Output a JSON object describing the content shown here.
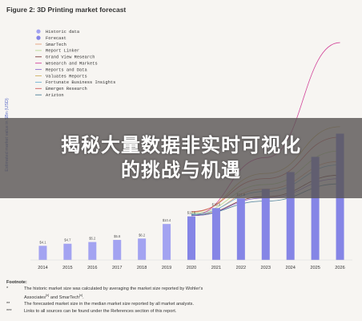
{
  "figure_title": "Figure 2: 3D Printing market forecast",
  "colors": {
    "historic_bar": "#a3a3f1",
    "forecast_bar": "#8585e6",
    "SmarTech": "#e3a07a",
    "Report Linker": "#b9d98f",
    "Grand View Research": "#7a3b3b",
    "Wesearch and Markets": "#d2459a",
    "Reports and Data": "#8f6ed1",
    "Valuates Reports": "#d0b264",
    "Fortunate Business Insights": "#6fb0d2",
    "Emergen Research": "#cf5a5a",
    "Arizton": "#4a7f98"
  },
  "chart_data": {
    "type": "bar",
    "title": "Figure 2: 3D Printing market forecast",
    "xlabel": "",
    "ylabel": "Estimated market value in $Bn (USD)",
    "categories": [
      "2014",
      "2015",
      "2016",
      "2017",
      "2018",
      "2019",
      "2020",
      "2021",
      "2022",
      "2023",
      "2024",
      "2025",
      "2026"
    ],
    "ylim": [
      0,
      70
    ],
    "grid": false,
    "legend_position": "top-left",
    "series": [
      {
        "name": "Historic data",
        "type": "bar",
        "values": [
          4.1,
          4.7,
          5.2,
          5.8,
          6.2,
          10.4,
          null,
          null,
          null,
          null,
          null,
          null,
          null
        ],
        "labels": [
          "$4.1",
          "$4.7",
          "$5.2",
          "$5.8",
          "$6.2",
          "$10.4",
          "",
          "",
          "",
          "",
          "",
          "",
          ""
        ]
      },
      {
        "name": "Forecast",
        "type": "bar",
        "values": [
          null,
          null,
          null,
          null,
          null,
          null,
          12.6,
          15.0,
          17.8,
          20.5,
          25.4,
          29.8,
          36.5
        ],
        "labels": [
          "",
          "",
          "",
          "",
          "",
          "",
          "$12.6",
          "$15.0",
          "$17.8",
          "",
          "",
          "",
          ""
        ]
      },
      {
        "name": "SmarTech",
        "type": "line",
        "x": [
          "2020",
          "2023",
          "2026"
        ],
        "values": [
          12.9,
          20.5,
          28.5
        ]
      },
      {
        "name": "Report Linker",
        "type": "line",
        "x": [
          "2020",
          "2023",
          "2026"
        ],
        "values": [
          13.4,
          21.8,
          31.5
        ]
      },
      {
        "name": "Grand View Research",
        "type": "line",
        "x": [
          "2020",
          "2023",
          "2026"
        ],
        "values": [
          12.8,
          18.3,
          24.5
        ]
      },
      {
        "name": "Wesearch and Markets",
        "type": "line",
        "x": [
          "2020",
          "2023",
          "2026"
        ],
        "values": [
          12.9,
          29.6,
          62.8
        ]
      },
      {
        "name": "Reports and Data",
        "type": "line",
        "x": [
          "2020",
          "2023",
          "2026"
        ],
        "values": [
          12.8,
          17.9,
          23.5
        ]
      },
      {
        "name": "Valuates Reports",
        "type": "line",
        "x": [
          "2020",
          "2023",
          "2026"
        ],
        "values": [
          13.8,
          25.0,
          38.5
        ]
      },
      {
        "name": "Fortunate Business Insights",
        "type": "line",
        "x": [
          "2020",
          "2023",
          "2026"
        ],
        "values": [
          13.2,
          19.8,
          27.5
        ]
      },
      {
        "name": "Emergen Research",
        "type": "line",
        "x": [
          "2020",
          "2023",
          "2026"
        ],
        "values": [
          14.0,
          23.5,
          35.5
        ]
      },
      {
        "name": "Arizton",
        "type": "line",
        "x": [
          "2020",
          "2023",
          "2026"
        ],
        "values": [
          13.0,
          17.0,
          22.0
        ]
      }
    ],
    "legend": [
      "Historic data",
      "Forecast",
      "SmarTech",
      "Report Linker",
      "Grand View Research",
      "Wesearch and Markets",
      "Reports and Data",
      "Valuates Reports",
      "Fortunate Business Insights",
      "Emergen Research",
      "Arizton"
    ]
  },
  "footnotes": {
    "heading": "Footnote:",
    "items": [
      {
        "mark": "*",
        "text": "The historic market size was calculated by averaging the market size reported by Wohler's",
        "cont": "Associates",
        "sup1": "[x]",
        "mid": " and SmarTech",
        "sup2": "[x]",
        "end": "."
      },
      {
        "mark": "**",
        "text": "The forecasted market size in the median market size reported by all market analysts."
      },
      {
        "mark": "***",
        "text": "Links to all sources can be found under the References section of this report."
      }
    ]
  },
  "banner": {
    "line1": "揭秘大量数据非实时可视化",
    "line2": "的挑战与机遇"
  }
}
